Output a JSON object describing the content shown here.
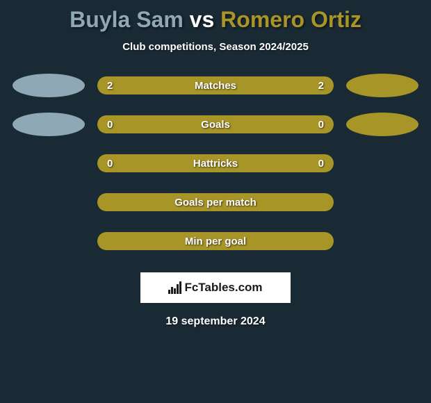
{
  "title": {
    "player1": "Buyla Sam",
    "vs": "vs",
    "player2": "Romero Ortiz",
    "player1_color": "#8fa8b5",
    "player2_color": "#a89528"
  },
  "subtitle": "Club competitions, Season 2024/2025",
  "background_color": "#1a2a35",
  "bar_color": "#a89528",
  "ellipse_player1_color": "#8fa8b5",
  "ellipse_player2_color": "#a89528",
  "rows": [
    {
      "label": "Matches",
      "left": "2",
      "right": "2",
      "show_ellipses": true
    },
    {
      "label": "Goals",
      "left": "0",
      "right": "0",
      "show_ellipses": true
    },
    {
      "label": "Hattricks",
      "left": "0",
      "right": "0",
      "show_ellipses": false
    },
    {
      "label": "Goals per match",
      "left": "",
      "right": "",
      "show_ellipses": false
    },
    {
      "label": "Min per goal",
      "left": "",
      "right": "",
      "show_ellipses": false
    }
  ],
  "logo_text": "FcTables.com",
  "date": "19 september 2024"
}
